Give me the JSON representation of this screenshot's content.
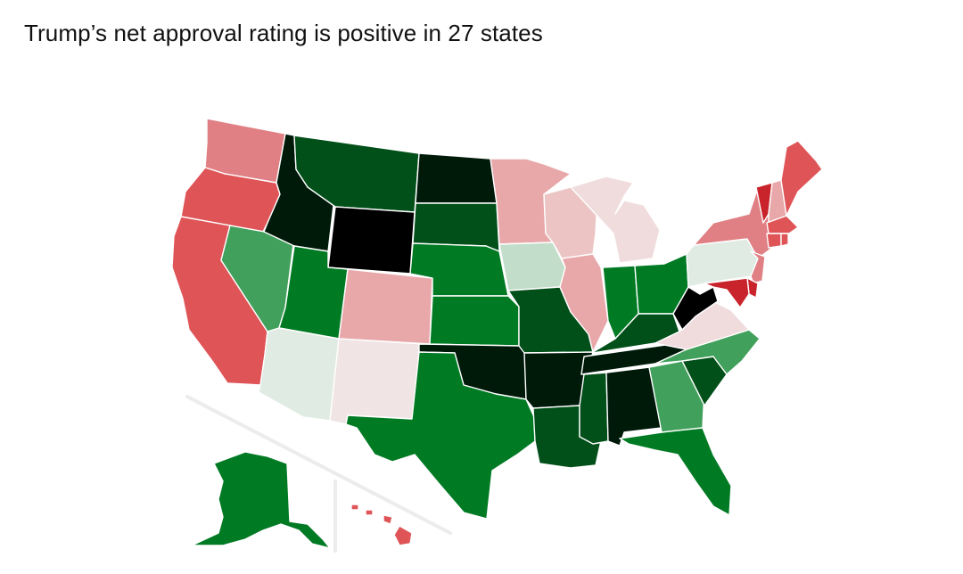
{
  "title": "Trump’s net approval rating is positive in 27 states",
  "legend_colors": {
    "strong_positive": "#000000",
    "very_positive": "#001a0a",
    "positive_dark": "#014f19",
    "positive": "#017a24",
    "moderate_positive": "#41a05b",
    "slight_positive": "#c2ddc9",
    "neutral_positive": "#e0ebe3",
    "neutral_negative": "#f0e4e5",
    "slight_negative": "#ecc4c4",
    "negative": "#e8a8aa",
    "moderate_negative": "#e08085",
    "strong_negative": "#df5457",
    "very_negative": "#c9242c"
  },
  "states": {
    "WA": "#e08085",
    "OR": "#df5457",
    "CA": "#df5457",
    "NV": "#41a05b",
    "ID": "#001a0a",
    "MT": "#014f19",
    "WY": "#000000",
    "UT": "#017a24",
    "AZ": "#e0ebe3",
    "NM": "#f0e4e5",
    "CO": "#e8a8aa",
    "ND": "#001a0a",
    "SD": "#014f19",
    "NE": "#017a24",
    "KS": "#017a24",
    "OK": "#001a0a",
    "TX": "#017a24",
    "MN": "#e8a8aa",
    "IA": "#c2ddc9",
    "MO": "#014f19",
    "AR": "#001a0a",
    "LA": "#014f19",
    "WI": "#ecc4c4",
    "IL": "#e8a8aa",
    "MI": "#f0dcdd",
    "IN": "#017a24",
    "OH": "#017a24",
    "KY": "#014f19",
    "TN": "#001a0a",
    "MS": "#014f19",
    "AL": "#001a0a",
    "GA": "#41a05b",
    "FL": "#017a24",
    "SC": "#014f19",
    "NC": "#41a05b",
    "VA": "#f0dcdd",
    "WV": "#000000",
    "PA": "#e0ebe3",
    "NY": "#e08085",
    "VT": "#c9242c",
    "NH": "#e8a8aa",
    "ME": "#df5457",
    "MA": "#df5457",
    "CT": "#df5457",
    "RI": "#df5457",
    "NJ": "#e08085",
    "DE": "#c9242c",
    "MD": "#c9242c",
    "AK": "#017a24",
    "HI": "#df5457"
  }
}
